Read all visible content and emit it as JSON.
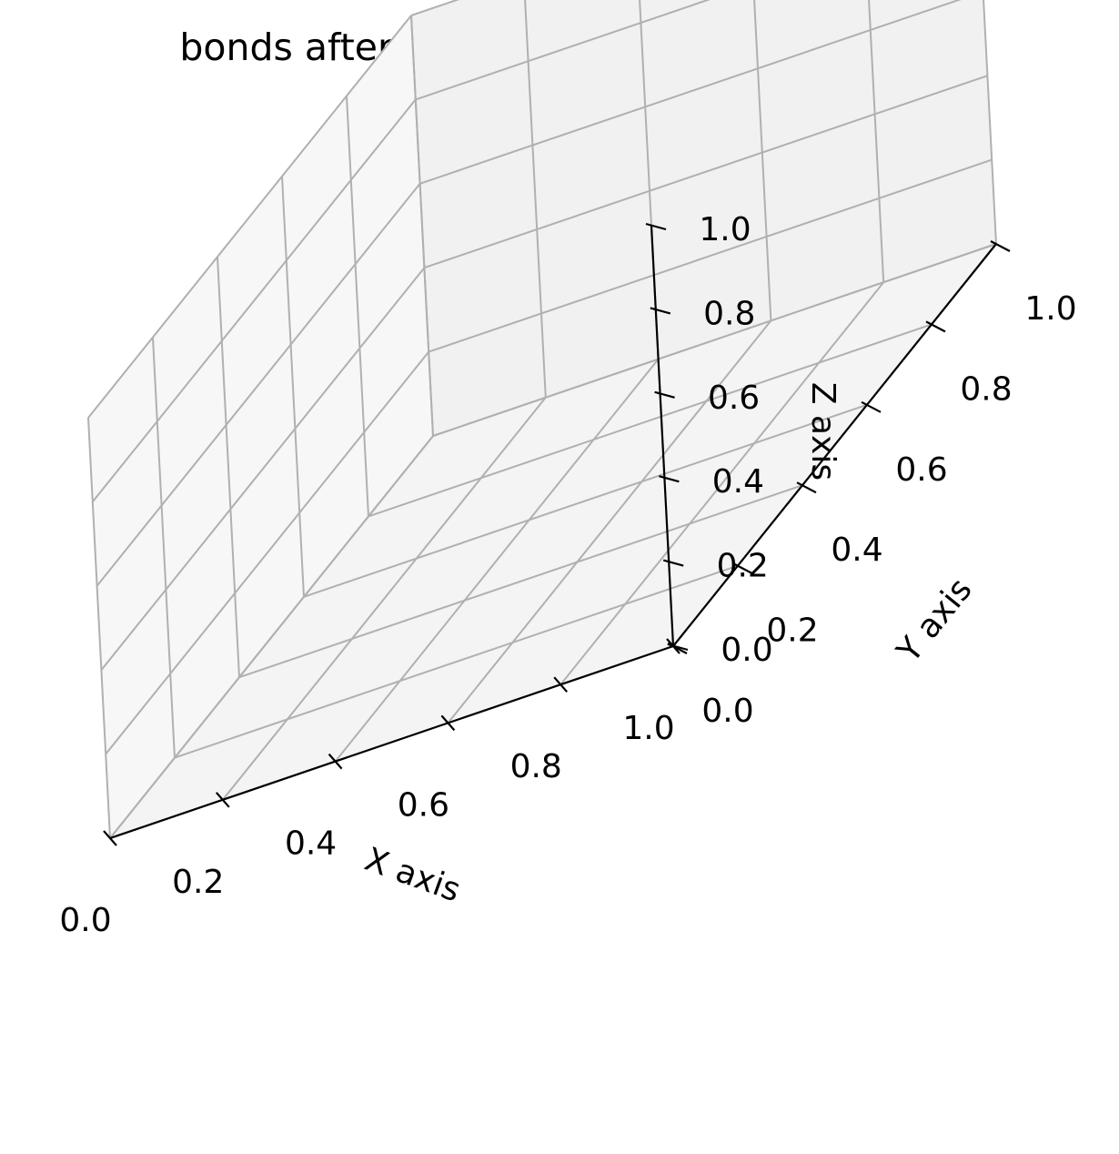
{
  "chart_data": {
    "type": "scatter",
    "projection": "3d",
    "title": "bonds after removing nonconvex part",
    "xlabel": "X axis",
    "ylabel": "Y axis",
    "zlabel": "Z axis",
    "xlim": [
      0,
      1
    ],
    "ylim": [
      0,
      1
    ],
    "zlim": [
      0,
      1
    ],
    "xticks": [
      "0.0",
      "0.2",
      "0.4",
      "0.6",
      "0.8",
      "1.0"
    ],
    "yticks": [
      "0.0",
      "0.2",
      "0.4",
      "0.6",
      "0.8",
      "1.0"
    ],
    "zticks": [
      "0.0",
      "0.2",
      "0.4",
      "0.6",
      "0.8",
      "1.0"
    ],
    "grid": true,
    "series": []
  },
  "colors": {
    "pane_back": "#f1f1f1",
    "pane_left": "#f7f7f7",
    "pane_floor": "#f4f4f4",
    "grid": "#b0b0b0"
  }
}
